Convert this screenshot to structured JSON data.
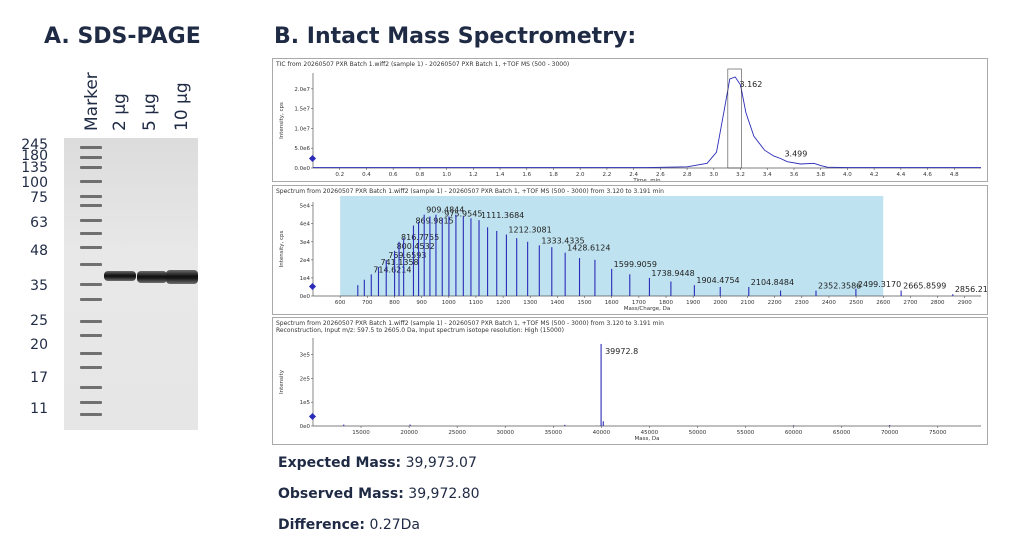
{
  "panel_a": {
    "title": "A. SDS-PAGE",
    "lanes": [
      "Marker",
      "2 µg",
      "5 µg",
      "10 µg"
    ],
    "mw_markers": [
      "245",
      "180",
      "135",
      "100",
      "75",
      "63",
      "48",
      "35",
      "25",
      "20",
      "17",
      "11"
    ]
  },
  "panel_b": {
    "title": "B. Intact Mass Spectrometry:"
  },
  "chart_data": [
    {
      "type": "line",
      "header": "TIC from 20260507 PXR Batch 1.wiff2 (sample 1) - 20260507 PXR Batch 1, +TOF MS (500 - 3000)",
      "xlabel": "Time, min",
      "ylabel": "Intensity, cps",
      "xlim": [
        0,
        5.0
      ],
      "ylim": [
        0,
        24000000.0
      ],
      "x_ticks": [
        "0.2",
        "0.4",
        "0.6",
        "0.8",
        "1.0",
        "1.2",
        "1.4",
        "1.6",
        "1.8",
        "2.0",
        "2.2",
        "2.4",
        "2.6",
        "2.8",
        "3.0",
        "3.2",
        "3.4",
        "3.6",
        "3.8",
        "4.0",
        "4.2",
        "4.4",
        "4.6",
        "4.8"
      ],
      "y_ticks": [
        "0.0e0",
        "5.0e6",
        "1.0e7",
        "1.5e7",
        "2.0e7"
      ],
      "series": [
        {
          "x": [
            0.0,
            0.5,
            1.0,
            1.5,
            2.0,
            2.5,
            2.8,
            2.95,
            3.02,
            3.08,
            3.12,
            3.16,
            3.2,
            3.24,
            3.3,
            3.38,
            3.45,
            3.499,
            3.55,
            3.65,
            3.75,
            3.8,
            3.85,
            4.0,
            4.5,
            5.0
          ],
          "y": [
            100000.0,
            100000.0,
            100000.0,
            100000.0,
            100000.0,
            100000.0,
            300000.0,
            1200000.0,
            4000000.0,
            15000000.0,
            22500000.0,
            23000000.0,
            21000000.0,
            14000000.0,
            8000000.0,
            4500000.0,
            3000000.0,
            2400000.0,
            1600000.0,
            1000000.0,
            1200000.0,
            600000.0,
            200000.0,
            100000.0,
            100000.0,
            100000.0
          ]
        }
      ],
      "annotations": [
        {
          "x": 3.162,
          "label": "3.162"
        },
        {
          "x": 3.499,
          "label": "3.499"
        }
      ]
    },
    {
      "type": "bar",
      "header": "Spectrum from 20260507 PXR Batch 1.wiff2 (sample 1) - 20260507 PXR Batch 1, +TOF MS (500 - 3000) from 3.120 to 3.191 min",
      "xlabel": "Mass/Charge, Da",
      "ylabel": "Intensity, cps",
      "xlim": [
        500,
        2960
      ],
      "ylim": [
        0,
        52000.0
      ],
      "x_ticks": [
        "600",
        "700",
        "800",
        "900",
        "1000",
        "1100",
        "1200",
        "1300",
        "1400",
        "1500",
        "1600",
        "1700",
        "1800",
        "1900",
        "2000",
        "2100",
        "2200",
        "2300",
        "2400",
        "2500",
        "2600",
        "2700",
        "2800",
        "2900"
      ],
      "y_ticks": [
        "0e0",
        "1e4",
        "2e4",
        "3e4",
        "4e4",
        "5e4"
      ],
      "highlight_range": [
        600,
        2600
      ],
      "peaks": [
        {
          "mz": 665.0,
          "intensity": 6000.0
        },
        {
          "mz": 689.0,
          "intensity": 9000.0
        },
        {
          "mz": 714.6214,
          "intensity": 12000.0,
          "label": "714.6214"
        },
        {
          "mz": 741.1358,
          "intensity": 16000.0,
          "label": "741.1358"
        },
        {
          "mz": 769.6593,
          "intensity": 20000.0,
          "label": "769.6593"
        },
        {
          "mz": 800.4532,
          "intensity": 25000.0,
          "label": "800.4532"
        },
        {
          "mz": 816.7755,
          "intensity": 30000.0,
          "label": "816.7755"
        },
        {
          "mz": 833.8,
          "intensity": 32000.0
        },
        {
          "mz": 869.9815,
          "intensity": 39000.0,
          "label": "869.9815"
        },
        {
          "mz": 888.8,
          "intensity": 41000.0
        },
        {
          "mz": 909.4844,
          "intensity": 45000.0,
          "label": "909.4844"
        },
        {
          "mz": 930.6,
          "intensity": 44000.0
        },
        {
          "mz": 952.8,
          "intensity": 45000.0
        },
        {
          "mz": 975.9545,
          "intensity": 43000.0,
          "label": "975.9545"
        },
        {
          "mz": 1000.5,
          "intensity": 44000.0
        },
        {
          "mz": 1026.3,
          "intensity": 45000.0
        },
        {
          "mz": 1053.6,
          "intensity": 44000.0
        },
        {
          "mz": 1081.7,
          "intensity": 43000.0
        },
        {
          "mz": 1111.3684,
          "intensity": 42000.0,
          "label": "1111.3684"
        },
        {
          "mz": 1142.9,
          "intensity": 38000.0
        },
        {
          "mz": 1176.6,
          "intensity": 36000.0
        },
        {
          "mz": 1212.3081,
          "intensity": 34000.0,
          "label": "1212.3081"
        },
        {
          "mz": 1250.1,
          "intensity": 32000.0
        },
        {
          "mz": 1290.4,
          "intensity": 30000.0
        },
        {
          "mz": 1333.4335,
          "intensity": 28000.0,
          "label": "1333.4335"
        },
        {
          "mz": 1379.4,
          "intensity": 27000.0
        },
        {
          "mz": 1428.6124,
          "intensity": 24000.0,
          "label": "1428.6124"
        },
        {
          "mz": 1481.5,
          "intensity": 21000.0
        },
        {
          "mz": 1538.2,
          "intensity": 20000.0
        },
        {
          "mz": 1599.9059,
          "intensity": 15000.0,
          "label": "1599.9059"
        },
        {
          "mz": 1666.6,
          "intensity": 12000.0
        },
        {
          "mz": 1738.9448,
          "intensity": 10000.0,
          "label": "1738.9448"
        },
        {
          "mz": 1818.0,
          "intensity": 8000.0
        },
        {
          "mz": 1904.4754,
          "intensity": 6000.0,
          "label": "1904.4754"
        },
        {
          "mz": 1999.7,
          "intensity": 5000.0
        },
        {
          "mz": 2104.8484,
          "intensity": 5000.0,
          "label": "2104.8484"
        },
        {
          "mz": 2221.8,
          "intensity": 3000.0
        },
        {
          "mz": 2352.3586,
          "intensity": 3000.0,
          "label": "2352.3586"
        },
        {
          "mz": 2499.317,
          "intensity": 4000.0,
          "label": "2499.3170"
        },
        {
          "mz": 2665.8599,
          "intensity": 3000.0,
          "label": "2665.8599"
        },
        {
          "mz": 2856.2152,
          "intensity": 1000.0,
          "label": "2856.2152"
        }
      ]
    },
    {
      "type": "bar",
      "header": "Spectrum from 20260507 PXR Batch 1.wiff2 (sample 1) - 20260507 PXR Batch 1, +TOF MS (500 - 3000) from 3.120 to 3.191 min",
      "header2": "Reconstruction,  Input m/z: 597.5 to 2605.0 Da, Input spectrum isotope resolution: High (15000)",
      "xlabel": "Mass, Da",
      "ylabel": "Intensity",
      "xlim": [
        10000,
        79500
      ],
      "ylim": [
        0,
        370000.0
      ],
      "x_ticks": [
        "15000",
        "20000",
        "25000",
        "30000",
        "35000",
        "40000",
        "45000",
        "50000",
        "55000",
        "60000",
        "65000",
        "70000",
        "75000"
      ],
      "y_ticks": [
        "0e0",
        "1e5",
        "2e5",
        "3e5"
      ],
      "peaks": [
        {
          "mass": 39972.8,
          "intensity": 345000.0,
          "label": "39972.8"
        },
        {
          "mass": 40200,
          "intensity": 20000.0
        },
        {
          "mass": 13200,
          "intensity": 6000.0
        },
        {
          "mass": 20100,
          "intensity": 6000.0
        },
        {
          "mass": 36200,
          "intensity": 5000.0
        },
        {
          "mass": 60000,
          "intensity": 3000.0
        },
        {
          "mass": 70000,
          "intensity": 4000.0
        }
      ]
    }
  ],
  "results": {
    "expected_label": "Expected Mass:",
    "expected_value": "39,973.07",
    "observed_label": "Observed Mass:",
    "observed_value": "39,972.80",
    "difference_label": "Difference:",
    "difference_value": "0.27Da"
  },
  "colors": {
    "trace": "#2b2bb8",
    "highlight": "#a8d8ea",
    "title": "#1f2a44"
  }
}
